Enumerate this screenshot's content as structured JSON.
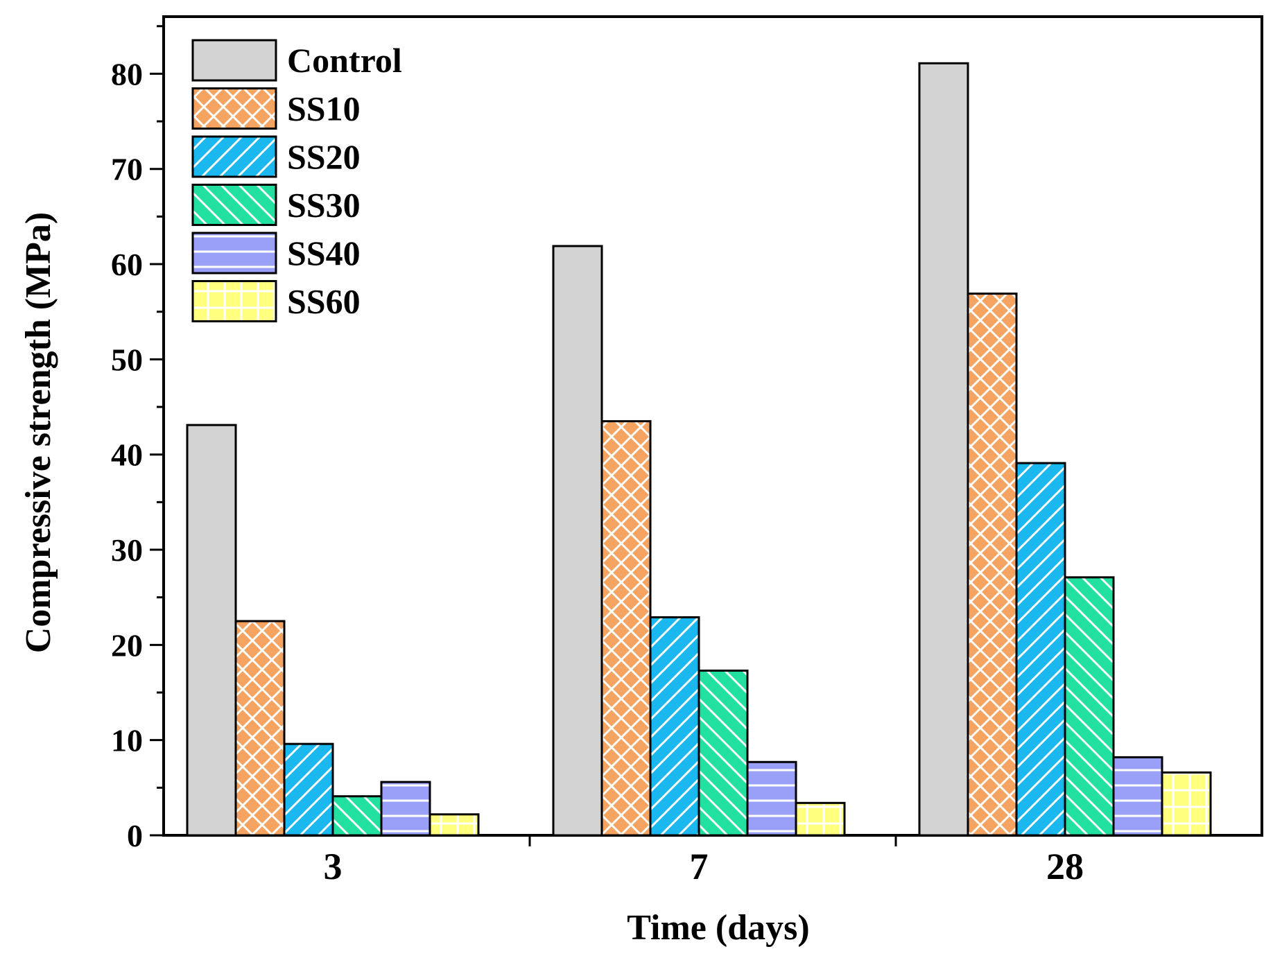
{
  "chart_data": {
    "type": "bar",
    "xlabel": "Time (days)",
    "ylabel": "Compressive strength (MPa)",
    "categories": [
      "3",
      "7",
      "28"
    ],
    "ylim": [
      0,
      86
    ],
    "yticks": [
      0,
      10,
      20,
      30,
      40,
      50,
      60,
      70,
      80
    ],
    "grid": false,
    "legend_position": "top-left",
    "series": [
      {
        "name": "Control",
        "values": [
          43.1,
          61.9,
          81.1
        ],
        "color": "#d3d3d3",
        "pattern": "solid"
      },
      {
        "name": "SS10",
        "values": [
          22.5,
          43.5,
          56.9
        ],
        "color": "#f4a460",
        "pattern": "crosshatch"
      },
      {
        "name": "SS20",
        "values": [
          9.6,
          22.9,
          39.1
        ],
        "color": "#1ab8ee",
        "pattern": "forward-diagonal"
      },
      {
        "name": "SS30",
        "values": [
          4.1,
          17.3,
          27.1
        ],
        "color": "#22e0a0",
        "pattern": "backward-diagonal"
      },
      {
        "name": "SS40",
        "values": [
          5.6,
          7.7,
          8.2
        ],
        "color": "#9aa0f8",
        "pattern": "horizontal"
      },
      {
        "name": "SS60",
        "values": [
          2.2,
          3.4,
          6.6
        ],
        "color": "#ffff80",
        "pattern": "grid"
      }
    ]
  }
}
